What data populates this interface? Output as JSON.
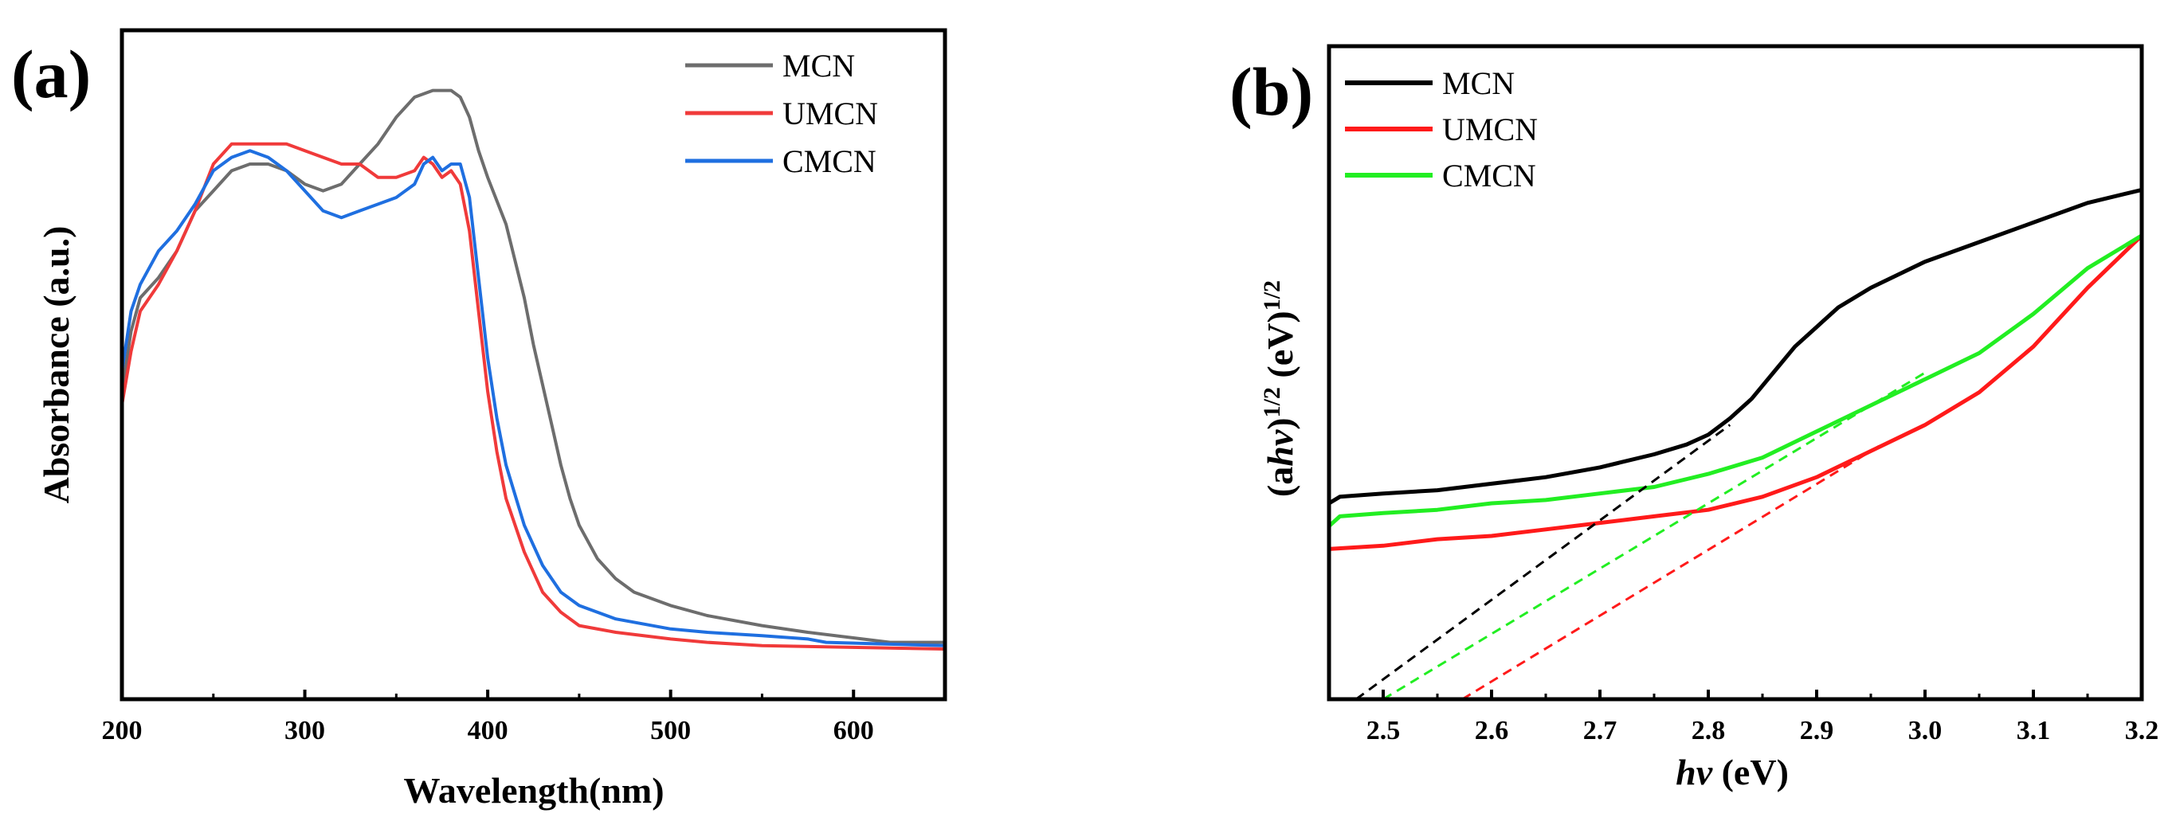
{
  "chart_data": [
    {
      "type": "line",
      "panel_label": "(a)",
      "xlabel": "Wavelength(nm)",
      "ylabel": "Absorbance (a.u.)",
      "xlim": [
        200,
        650
      ],
      "ylim": [
        0,
        1
      ],
      "x_ticks": [
        200,
        300,
        400,
        500,
        600
      ],
      "y_ticks_labeled": false,
      "legend_position": "top-right",
      "series": [
        {
          "name": "MCN",
          "color": "#6d6d6d",
          "points": [
            [
              200,
              0.46
            ],
            [
              205,
              0.55
            ],
            [
              210,
              0.6
            ],
            [
              220,
              0.63
            ],
            [
              230,
              0.67
            ],
            [
              240,
              0.73
            ],
            [
              250,
              0.76
            ],
            [
              260,
              0.79
            ],
            [
              270,
              0.8
            ],
            [
              280,
              0.8
            ],
            [
              290,
              0.79
            ],
            [
              300,
              0.77
            ],
            [
              310,
              0.76
            ],
            [
              320,
              0.77
            ],
            [
              330,
              0.8
            ],
            [
              340,
              0.83
            ],
            [
              350,
              0.87
            ],
            [
              360,
              0.9
            ],
            [
              370,
              0.91
            ],
            [
              380,
              0.91
            ],
            [
              385,
              0.9
            ],
            [
              390,
              0.87
            ],
            [
              395,
              0.82
            ],
            [
              400,
              0.78
            ],
            [
              410,
              0.71
            ],
            [
              420,
              0.6
            ],
            [
              425,
              0.53
            ],
            [
              430,
              0.47
            ],
            [
              435,
              0.41
            ],
            [
              440,
              0.35
            ],
            [
              445,
              0.3
            ],
            [
              450,
              0.26
            ],
            [
              460,
              0.21
            ],
            [
              470,
              0.18
            ],
            [
              480,
              0.16
            ],
            [
              500,
              0.14
            ],
            [
              520,
              0.125
            ],
            [
              550,
              0.11
            ],
            [
              575,
              0.1
            ],
            [
              620,
              0.085
            ],
            [
              650,
              0.085
            ]
          ]
        },
        {
          "name": "UMCN",
          "color": "#f03a3a",
          "points": [
            [
              200,
              0.44
            ],
            [
              205,
              0.52
            ],
            [
              210,
              0.58
            ],
            [
              220,
              0.62
            ],
            [
              230,
              0.67
            ],
            [
              240,
              0.73
            ],
            [
              250,
              0.8
            ],
            [
              260,
              0.83
            ],
            [
              270,
              0.83
            ],
            [
              280,
              0.83
            ],
            [
              290,
              0.83
            ],
            [
              300,
              0.82
            ],
            [
              310,
              0.81
            ],
            [
              320,
              0.8
            ],
            [
              330,
              0.8
            ],
            [
              340,
              0.78
            ],
            [
              350,
              0.78
            ],
            [
              360,
              0.79
            ],
            [
              365,
              0.81
            ],
            [
              370,
              0.8
            ],
            [
              375,
              0.78
            ],
            [
              380,
              0.79
            ],
            [
              385,
              0.77
            ],
            [
              390,
              0.7
            ],
            [
              395,
              0.58
            ],
            [
              400,
              0.46
            ],
            [
              405,
              0.37
            ],
            [
              410,
              0.3
            ],
            [
              420,
              0.22
            ],
            [
              430,
              0.16
            ],
            [
              440,
              0.13
            ],
            [
              450,
              0.11
            ],
            [
              470,
              0.1
            ],
            [
              500,
              0.09
            ],
            [
              520,
              0.085
            ],
            [
              550,
              0.08
            ],
            [
              650,
              0.075
            ]
          ]
        },
        {
          "name": "CMCN",
          "color": "#1f6fe0",
          "points": [
            [
              200,
              0.49
            ],
            [
              205,
              0.58
            ],
            [
              210,
              0.62
            ],
            [
              220,
              0.67
            ],
            [
              230,
              0.7
            ],
            [
              240,
              0.74
            ],
            [
              250,
              0.79
            ],
            [
              260,
              0.81
            ],
            [
              270,
              0.82
            ],
            [
              280,
              0.81
            ],
            [
              290,
              0.79
            ],
            [
              300,
              0.76
            ],
            [
              310,
              0.73
            ],
            [
              320,
              0.72
            ],
            [
              330,
              0.73
            ],
            [
              340,
              0.74
            ],
            [
              350,
              0.75
            ],
            [
              360,
              0.77
            ],
            [
              365,
              0.8
            ],
            [
              370,
              0.81
            ],
            [
              375,
              0.79
            ],
            [
              380,
              0.8
            ],
            [
              385,
              0.8
            ],
            [
              390,
              0.75
            ],
            [
              395,
              0.63
            ],
            [
              400,
              0.51
            ],
            [
              405,
              0.42
            ],
            [
              410,
              0.35
            ],
            [
              420,
              0.26
            ],
            [
              430,
              0.2
            ],
            [
              440,
              0.16
            ],
            [
              450,
              0.14
            ],
            [
              470,
              0.12
            ],
            [
              500,
              0.105
            ],
            [
              520,
              0.1
            ],
            [
              550,
              0.095
            ],
            [
              575,
              0.09
            ],
            [
              585,
              0.085
            ],
            [
              650,
              0.08
            ]
          ]
        }
      ]
    },
    {
      "type": "line",
      "panel_label": "(b)",
      "xlabel": "hv (eV)",
      "ylabel": "(ahv)1/2 (eV)1/2",
      "xlim": [
        2.45,
        3.2
      ],
      "ylim": [
        0,
        1
      ],
      "x_ticks": [
        2.5,
        2.6,
        2.7,
        2.8,
        2.9,
        3.0,
        3.1,
        3.2
      ],
      "x_tick_labels": [
        "2.5",
        "2.6",
        "2.7",
        "2.8",
        "2.9",
        "3.0",
        "3.1",
        "3.2"
      ],
      "y_ticks_labeled": false,
      "legend_position": "top-left",
      "series": [
        {
          "name": "MCN",
          "color": "#000000",
          "points": [
            [
              2.45,
              0.3
            ],
            [
              2.46,
              0.31
            ],
            [
              2.5,
              0.315
            ],
            [
              2.55,
              0.32
            ],
            [
              2.6,
              0.33
            ],
            [
              2.65,
              0.34
            ],
            [
              2.7,
              0.355
            ],
            [
              2.75,
              0.375
            ],
            [
              2.78,
              0.39
            ],
            [
              2.8,
              0.405
            ],
            [
              2.82,
              0.43
            ],
            [
              2.84,
              0.46
            ],
            [
              2.86,
              0.5
            ],
            [
              2.88,
              0.54
            ],
            [
              2.9,
              0.57
            ],
            [
              2.92,
              0.6
            ],
            [
              2.95,
              0.63
            ],
            [
              3.0,
              0.67
            ],
            [
              3.05,
              0.7
            ],
            [
              3.1,
              0.73
            ],
            [
              3.15,
              0.76
            ],
            [
              3.2,
              0.78
            ]
          ]
        },
        {
          "name": "UMCN",
          "color": "#ff1a1a",
          "points": [
            [
              2.45,
              0.23
            ],
            [
              2.5,
              0.235
            ],
            [
              2.55,
              0.245
            ],
            [
              2.6,
              0.25
            ],
            [
              2.65,
              0.26
            ],
            [
              2.7,
              0.27
            ],
            [
              2.75,
              0.28
            ],
            [
              2.8,
              0.29
            ],
            [
              2.85,
              0.31
            ],
            [
              2.9,
              0.34
            ],
            [
              2.95,
              0.38
            ],
            [
              3.0,
              0.42
            ],
            [
              3.05,
              0.47
            ],
            [
              3.1,
              0.54
            ],
            [
              3.15,
              0.63
            ],
            [
              3.2,
              0.71
            ]
          ]
        },
        {
          "name": "CMCN",
          "color": "#22ee22",
          "points": [
            [
              2.45,
              0.265
            ],
            [
              2.46,
              0.28
            ],
            [
              2.5,
              0.285
            ],
            [
              2.55,
              0.29
            ],
            [
              2.6,
              0.3
            ],
            [
              2.65,
              0.305
            ],
            [
              2.7,
              0.315
            ],
            [
              2.75,
              0.325
            ],
            [
              2.8,
              0.345
            ],
            [
              2.85,
              0.37
            ],
            [
              2.9,
              0.41
            ],
            [
              2.95,
              0.45
            ],
            [
              3.0,
              0.49
            ],
            [
              3.05,
              0.53
            ],
            [
              3.1,
              0.59
            ],
            [
              3.15,
              0.66
            ],
            [
              3.2,
              0.71
            ]
          ]
        },
        {
          "name": "MCN tangent",
          "color": "#000000",
          "dashed": true,
          "points": [
            [
              2.475,
              0.0
            ],
            [
              2.82,
              0.42
            ]
          ]
        },
        {
          "name": "UMCN tangent",
          "color": "#ff1a1a",
          "dashed": true,
          "points": [
            [
              2.573,
              0.0
            ],
            [
              2.96,
              0.39
            ]
          ]
        },
        {
          "name": "CMCN tangent",
          "color": "#22ee22",
          "dashed": true,
          "points": [
            [
              2.5,
              0.0
            ],
            [
              3.0,
              0.5
            ]
          ]
        }
      ]
    }
  ]
}
